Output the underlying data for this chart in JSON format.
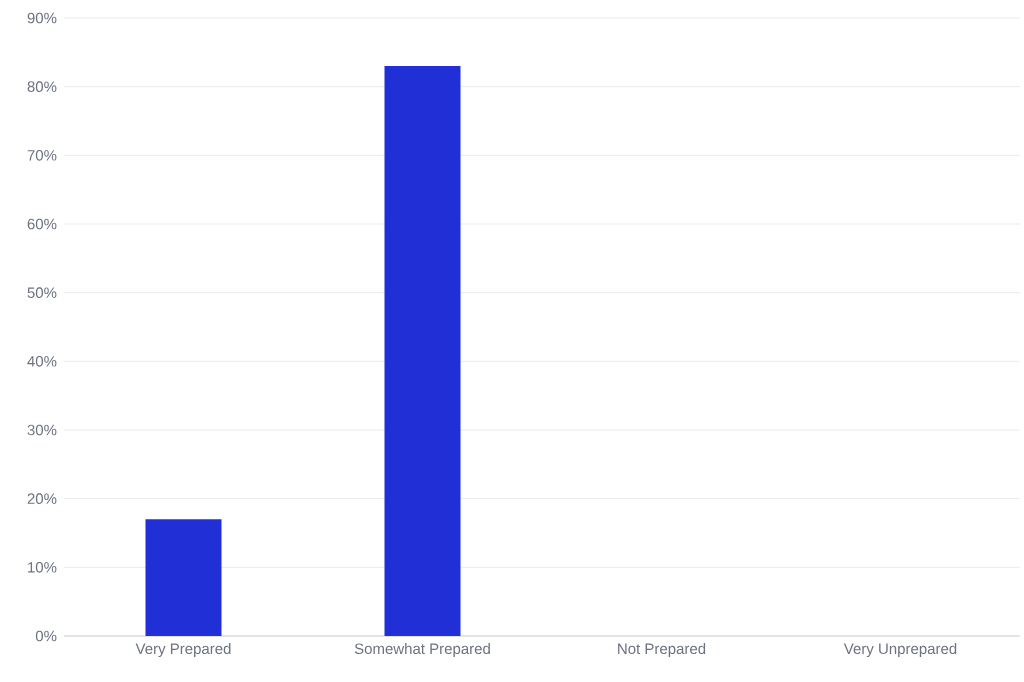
{
  "chart_data": {
    "type": "bar",
    "categories": [
      "Very Prepared",
      "Somewhat Prepared",
      "Not Prepared",
      "Very Unprepared"
    ],
    "values": [
      17,
      83,
      0,
      0
    ],
    "color": "#2130d6",
    "ylim": [
      0,
      90
    ],
    "yticks": [
      {
        "value": 0,
        "label": "0%"
      },
      {
        "value": 10,
        "label": "10%"
      },
      {
        "value": 20,
        "label": "20%"
      },
      {
        "value": 30,
        "label": "30%"
      },
      {
        "value": 40,
        "label": "40%"
      },
      {
        "value": 50,
        "label": "50%"
      },
      {
        "value": 60,
        "label": "60%"
      },
      {
        "value": 70,
        "label": "70%"
      },
      {
        "value": 80,
        "label": "80%"
      },
      {
        "value": 90,
        "label": "90%"
      }
    ],
    "grid": "y"
  }
}
